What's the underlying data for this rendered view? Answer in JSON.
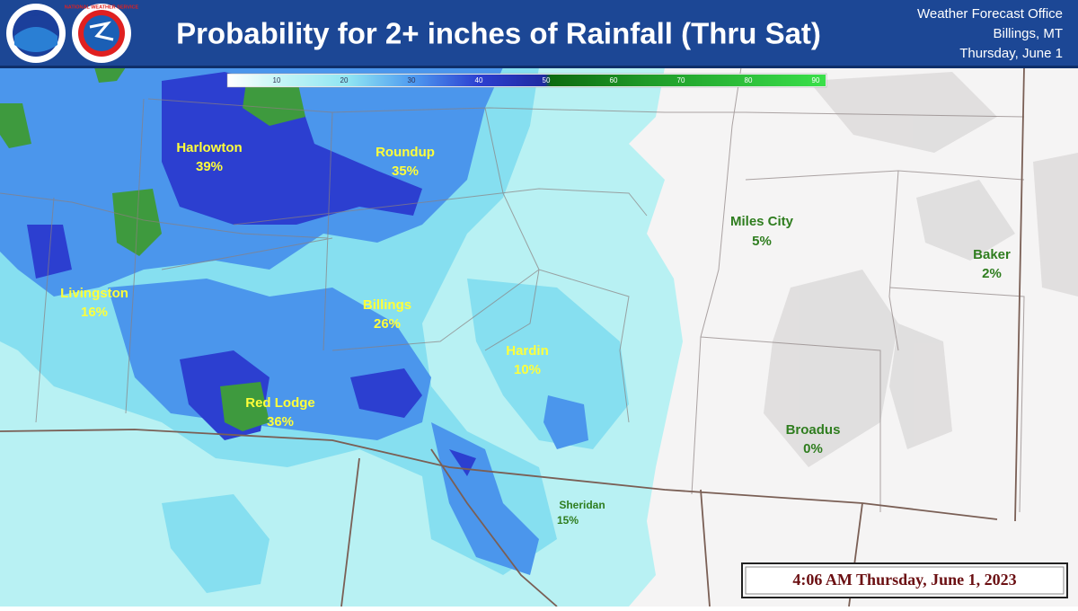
{
  "header": {
    "title": "Probability for 2+ inches of Rainfall (Thru Sat)",
    "logos": [
      "NOAA",
      "NATIONAL WEATHER SERVICE"
    ],
    "office": [
      "Weather Forecast Office",
      "Billings, MT",
      "Thursday, June 1"
    ]
  },
  "legend": {
    "ticks": [
      10,
      20,
      30,
      40,
      50,
      60,
      70,
      80,
      90
    ]
  },
  "places": [
    {
      "name": "Harlowton",
      "percent": "39%"
    },
    {
      "name": "Roundup",
      "percent": "35%"
    },
    {
      "name": "Livingston",
      "percent": "16%"
    },
    {
      "name": "Billings",
      "percent": "26%"
    },
    {
      "name": "Hardin",
      "percent": "10%"
    },
    {
      "name": "Red Lodge",
      "percent": "36%"
    },
    {
      "name": "Miles City",
      "percent": "5%"
    },
    {
      "name": "Baker",
      "percent": "2%"
    },
    {
      "name": "Broadus",
      "percent": "0%"
    },
    {
      "name": "Sheridan",
      "percent": "15%"
    }
  ],
  "timestamp": "4:06 AM Thursday, June 1, 2023"
}
